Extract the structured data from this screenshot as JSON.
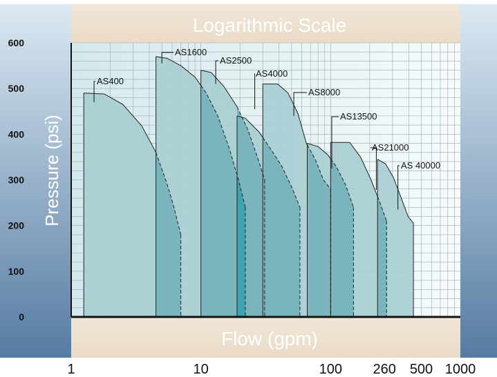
{
  "chart_data": {
    "type": "area",
    "title": "Logarithmic Scale",
    "xlabel": "Flow (gpm)",
    "ylabel": "Pressure (psi)",
    "x_scale": "log",
    "xlim": [
      1,
      1000
    ],
    "ylim": [
      0,
      600
    ],
    "x_ticks": [
      "1",
      "10",
      "100",
      "260",
      "500",
      "1000"
    ],
    "x_tick_values": [
      1,
      10,
      100,
      260,
      500,
      1000
    ],
    "y_ticks": [
      "0",
      "100",
      "200",
      "300",
      "400",
      "500",
      "600"
    ],
    "y_tick_values": [
      0,
      100,
      200,
      300,
      400,
      500,
      600
    ],
    "grid": true,
    "colors": {
      "fill": "#a8ced2",
      "overlap": "#7ab4bc",
      "triple_overlap": "#3ea3ac",
      "outline": "#222222",
      "banner": "#efe2d0",
      "side_panel_top": "#d6e8f2",
      "side_panel_bottom": "#5d7fa3"
    },
    "series": [
      {
        "name": "AS400",
        "label": "AS400",
        "left": 1.25,
        "points": [
          [
            1.25,
            490
          ],
          [
            1.8,
            488
          ],
          [
            2.5,
            465
          ],
          [
            3.5,
            418
          ],
          [
            4.5,
            360
          ],
          [
            5.5,
            290
          ],
          [
            6.2,
            240
          ],
          [
            7.0,
            180
          ]
        ]
      },
      {
        "name": "AS1600",
        "label": "AS1600",
        "left": 4.5,
        "points": [
          [
            4.5,
            570
          ],
          [
            5.5,
            566
          ],
          [
            7,
            550
          ],
          [
            9,
            525
          ],
          [
            11,
            490
          ],
          [
            13.5,
            440
          ],
          [
            16.5,
            370
          ],
          [
            19.5,
            300
          ],
          [
            22,
            240
          ]
        ]
      },
      {
        "name": "AS2500",
        "label": "AS2500",
        "left": 10,
        "points": [
          [
            10,
            540
          ],
          [
            12,
            535
          ],
          [
            15,
            505
          ],
          [
            19,
            460
          ],
          [
            23,
            410
          ],
          [
            28,
            340
          ],
          [
            31,
            300
          ]
        ]
      },
      {
        "name": "AS4000",
        "label": "AS4000",
        "left": 19,
        "points": [
          [
            19,
            440
          ],
          [
            22,
            435
          ],
          [
            28,
            405
          ],
          [
            35,
            365
          ],
          [
            42,
            330
          ],
          [
            50,
            285
          ],
          [
            58,
            240
          ]
        ]
      },
      {
        "name": "AS8000",
        "label": "AS8000",
        "left": 30,
        "points": [
          [
            30,
            510
          ],
          [
            39,
            510
          ],
          [
            47,
            490
          ],
          [
            56,
            445
          ],
          [
            65,
            380
          ],
          [
            76,
            345
          ],
          [
            88,
            300
          ],
          [
            100,
            280
          ]
        ]
      },
      {
        "name": "AS13500",
        "label": "AS13500",
        "left": 66,
        "points": [
          [
            66,
            380
          ],
          [
            80,
            373
          ],
          [
            95,
            355
          ],
          [
            110,
            330
          ],
          [
            130,
            290
          ],
          [
            150,
            240
          ]
        ]
      },
      {
        "name": "AS21000",
        "label": "AS21000",
        "left": 100,
        "points": [
          [
            100,
            382
          ],
          [
            140,
            382
          ],
          [
            170,
            350
          ],
          [
            205,
            300
          ],
          [
            240,
            250
          ],
          [
            270,
            210
          ]
        ]
      },
      {
        "name": "AS 40000",
        "label": "AS 40000",
        "left": 230,
        "points": [
          [
            230,
            345
          ],
          [
            265,
            335
          ],
          [
            305,
            305
          ],
          [
            345,
            265
          ],
          [
            395,
            220
          ],
          [
            435,
            205
          ]
        ]
      }
    ]
  }
}
